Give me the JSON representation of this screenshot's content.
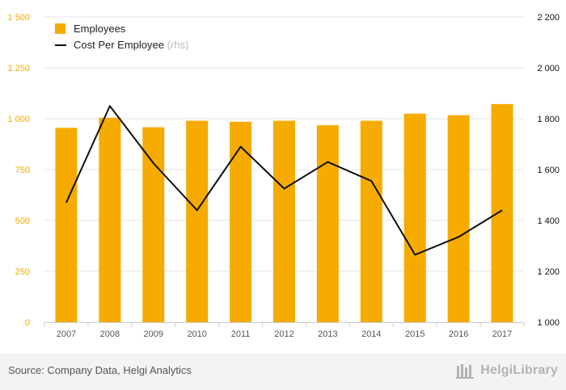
{
  "chart_data": {
    "type": "bar+line",
    "categories": [
      "2007",
      "2008",
      "2009",
      "2010",
      "2011",
      "2012",
      "2013",
      "2014",
      "2015",
      "2016",
      "2017"
    ],
    "series": [
      {
        "name": "Employees",
        "type": "bar",
        "axis": "left",
        "color": "#f5ab00",
        "values": [
          955,
          1005,
          958,
          990,
          985,
          990,
          968,
          990,
          1025,
          1017,
          1072
        ]
      },
      {
        "name": "Cost Per Employee",
        "suffix": "(rhs)",
        "type": "line",
        "axis": "right",
        "color": "#111111",
        "values": [
          1470,
          1850,
          1625,
          1440,
          1690,
          1525,
          1630,
          1555,
          1265,
          1335,
          1440
        ]
      }
    ],
    "y_left": {
      "min": 0,
      "max": 1500,
      "ticks": [
        "0",
        "250",
        "500",
        "750",
        "1 000",
        "1 250",
        "1 500"
      ],
      "color": "#f5ab00"
    },
    "y_right": {
      "min": 1000,
      "max": 2200,
      "ticks": [
        "1 000",
        "1 200",
        "1 400",
        "1 600",
        "1 800",
        "2 000",
        "2 200"
      ],
      "color": "#111111"
    },
    "grid": "horizontal",
    "legend_position": "top-left"
  },
  "footer": {
    "source": "Source: Company Data, Helgi Analytics",
    "brand": "HelgiLibrary"
  }
}
